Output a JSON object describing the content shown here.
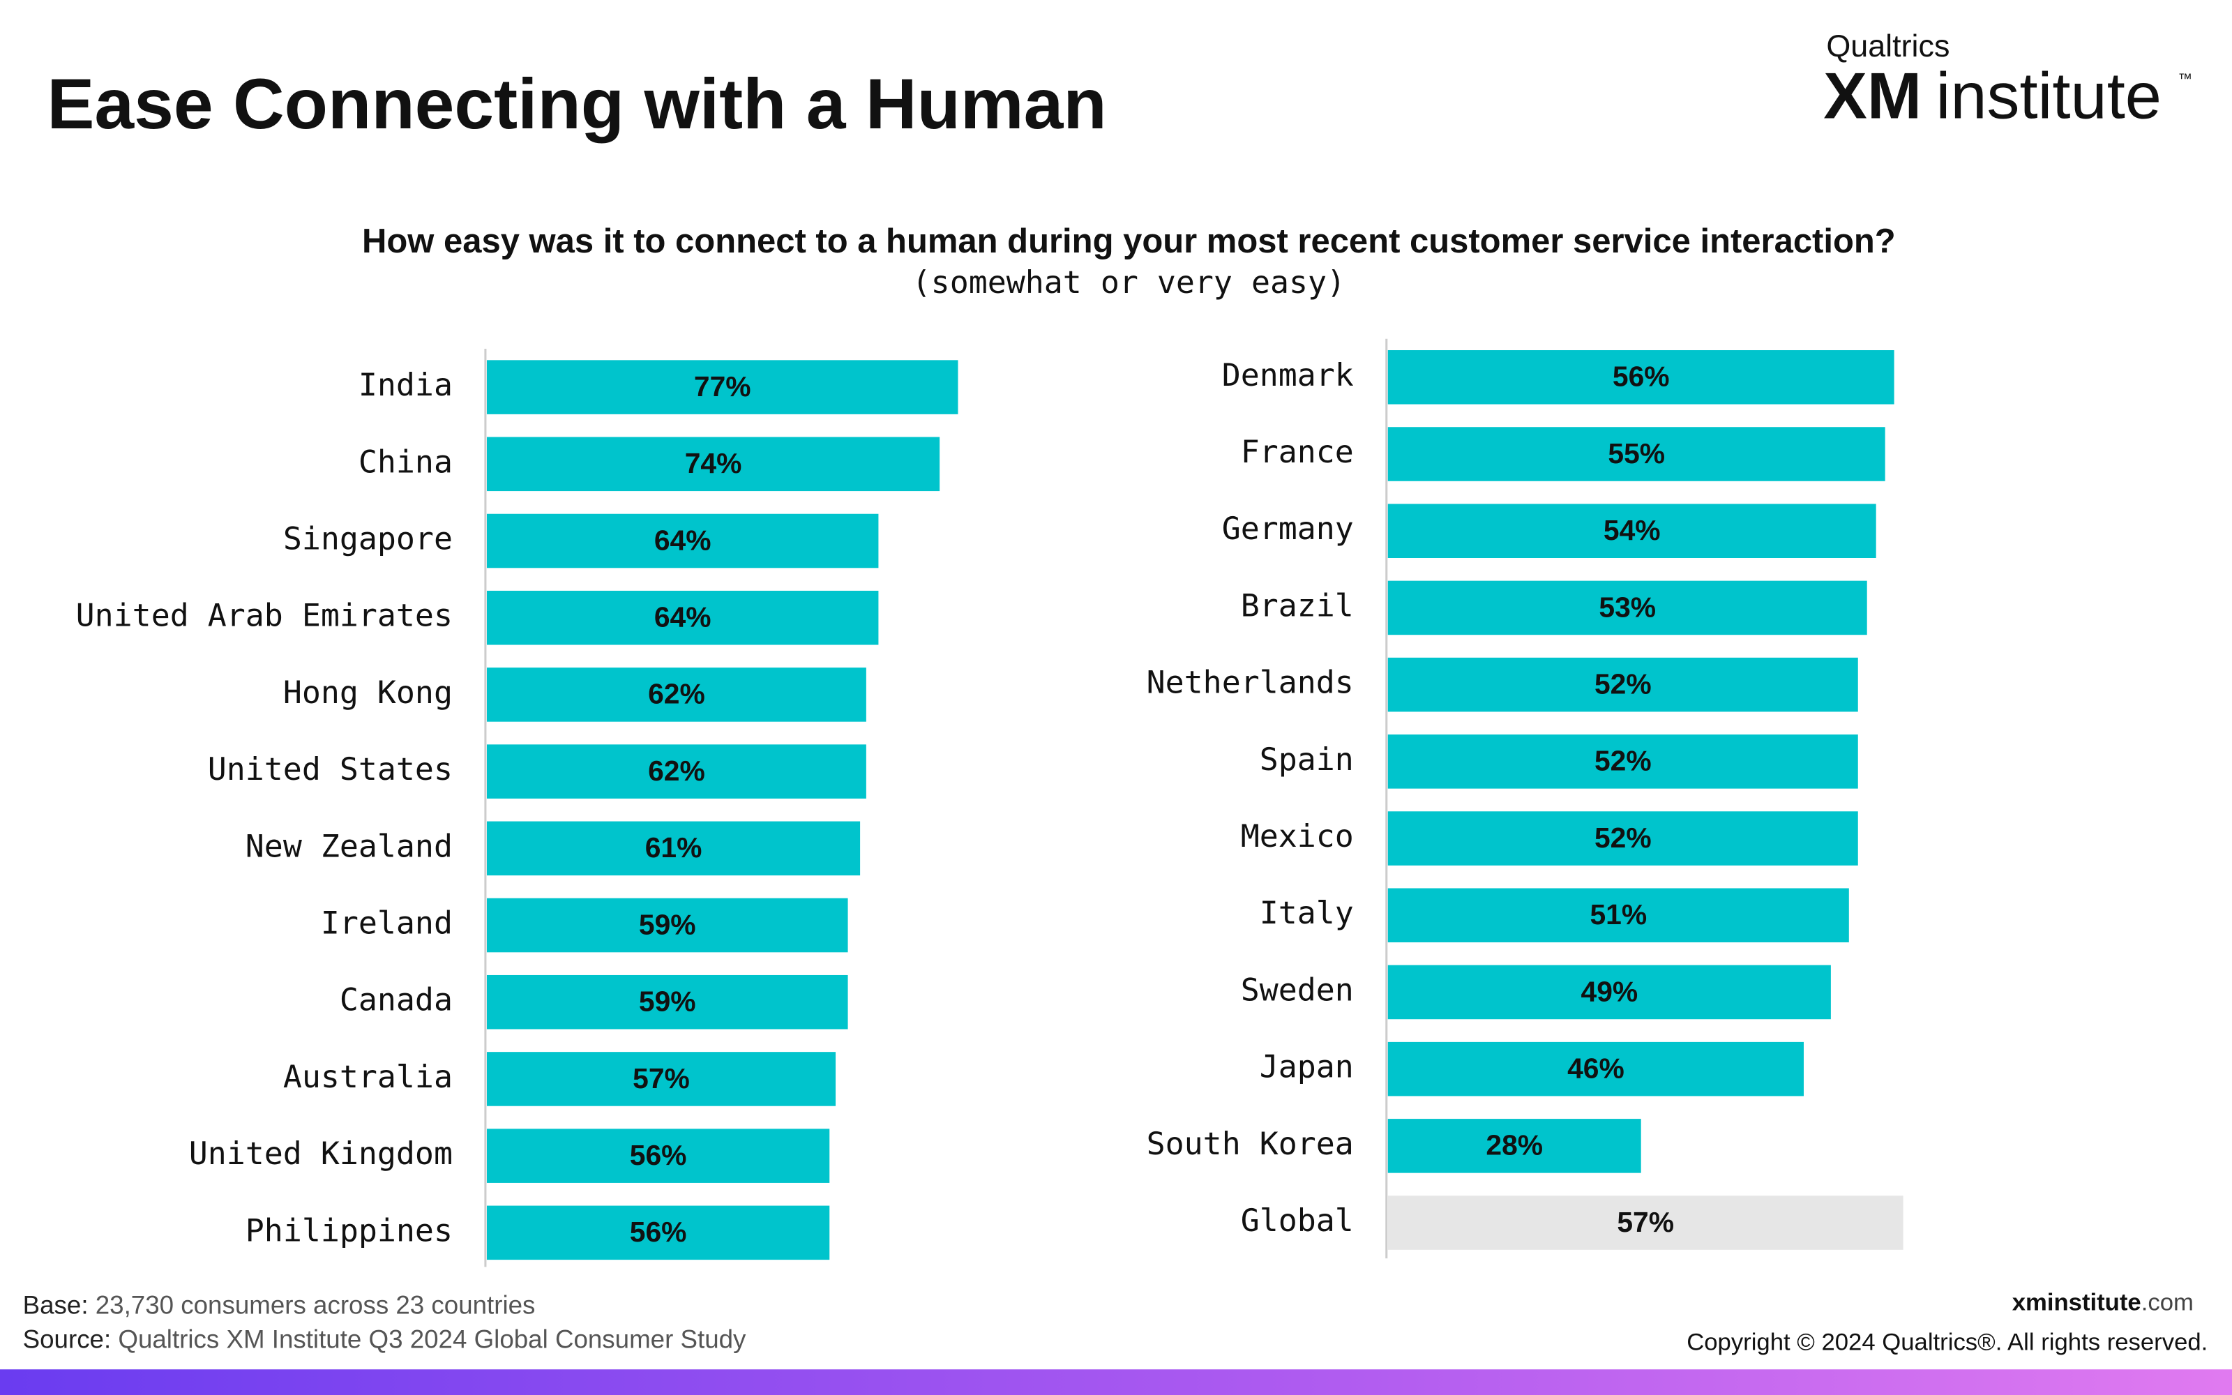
{
  "header": {
    "title": "Ease Connecting with a Human",
    "logo": {
      "brand": "Qualtrics",
      "xm": "XM",
      "word": "institute",
      "tm": "™"
    }
  },
  "question": {
    "title": "How easy was it to connect to a human during your most recent customer service interaction?",
    "subtitle": "(somewhat or very easy)"
  },
  "chart_data": [
    {
      "type": "bar",
      "orientation": "horizontal",
      "categories": [
        "India",
        "China",
        "Singapore",
        "United Arab Emirates",
        "Hong Kong",
        "United States",
        "New Zealand",
        "Ireland",
        "Canada",
        "Australia",
        "United Kingdom",
        "Philippines"
      ],
      "values": [
        77,
        74,
        64,
        64,
        62,
        62,
        61,
        59,
        59,
        57,
        56,
        56
      ],
      "value_labels": [
        "77%",
        "74%",
        "64%",
        "64%",
        "62%",
        "62%",
        "61%",
        "59%",
        "59%",
        "57%",
        "56%",
        "56%"
      ],
      "colors": [
        "#00c4cc",
        "#00c4cc",
        "#00c4cc",
        "#00c4cc",
        "#00c4cc",
        "#00c4cc",
        "#00c4cc",
        "#00c4cc",
        "#00c4cc",
        "#00c4cc",
        "#00c4cc",
        "#00c4cc"
      ]
    },
    {
      "type": "bar",
      "orientation": "horizontal",
      "categories": [
        "Denmark",
        "France",
        "Germany",
        "Brazil",
        "Netherlands",
        "Spain",
        "Mexico",
        "Italy",
        "Sweden",
        "Japan",
        "South Korea",
        "Global"
      ],
      "values": [
        56,
        55,
        54,
        53,
        52,
        52,
        52,
        51,
        49,
        46,
        28,
        57
      ],
      "value_labels": [
        "56%",
        "55%",
        "54%",
        "53%",
        "52%",
        "52%",
        "52%",
        "51%",
        "49%",
        "46%",
        "28%",
        "57%"
      ],
      "colors": [
        "#00c4cc",
        "#00c4cc",
        "#00c4cc",
        "#00c4cc",
        "#00c4cc",
        "#00c4cc",
        "#00c4cc",
        "#00c4cc",
        "#00c4cc",
        "#00c4cc",
        "#00c4cc",
        "#e6e6e6"
      ]
    }
  ],
  "footer": {
    "base_label": "Base:",
    "base_text": " 23,730 consumers across 23 countries",
    "source_label": "Source:",
    "source_text": " Qualtrics XM Institute Q3 2024 Global Consumer Study",
    "site_bold": "xminstitute",
    "site_rest": ".com",
    "copyright": "Copyright © 2024 Qualtrics®. All rights reserved."
  }
}
